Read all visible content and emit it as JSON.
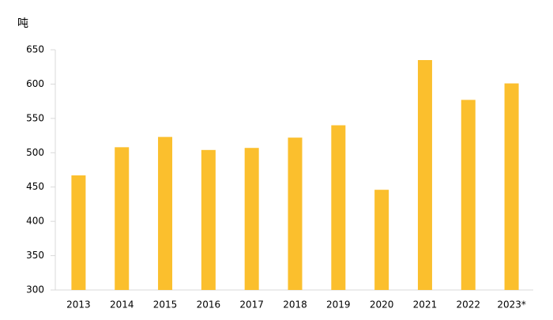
{
  "chart_data": {
    "type": "bar",
    "y_label": "吨",
    "categories": [
      "2013",
      "2014",
      "2015",
      "2016",
      "2017",
      "2018",
      "2019",
      "2020",
      "2021",
      "2022",
      "2023*"
    ],
    "values": [
      467,
      508,
      523,
      504,
      507,
      522,
      540,
      446,
      635,
      577,
      601
    ],
    "color": "#fbbf2d",
    "ylim": [
      300,
      650
    ],
    "yticks": [
      300,
      350,
      400,
      450,
      500,
      550,
      600,
      650
    ],
    "grid": false
  }
}
